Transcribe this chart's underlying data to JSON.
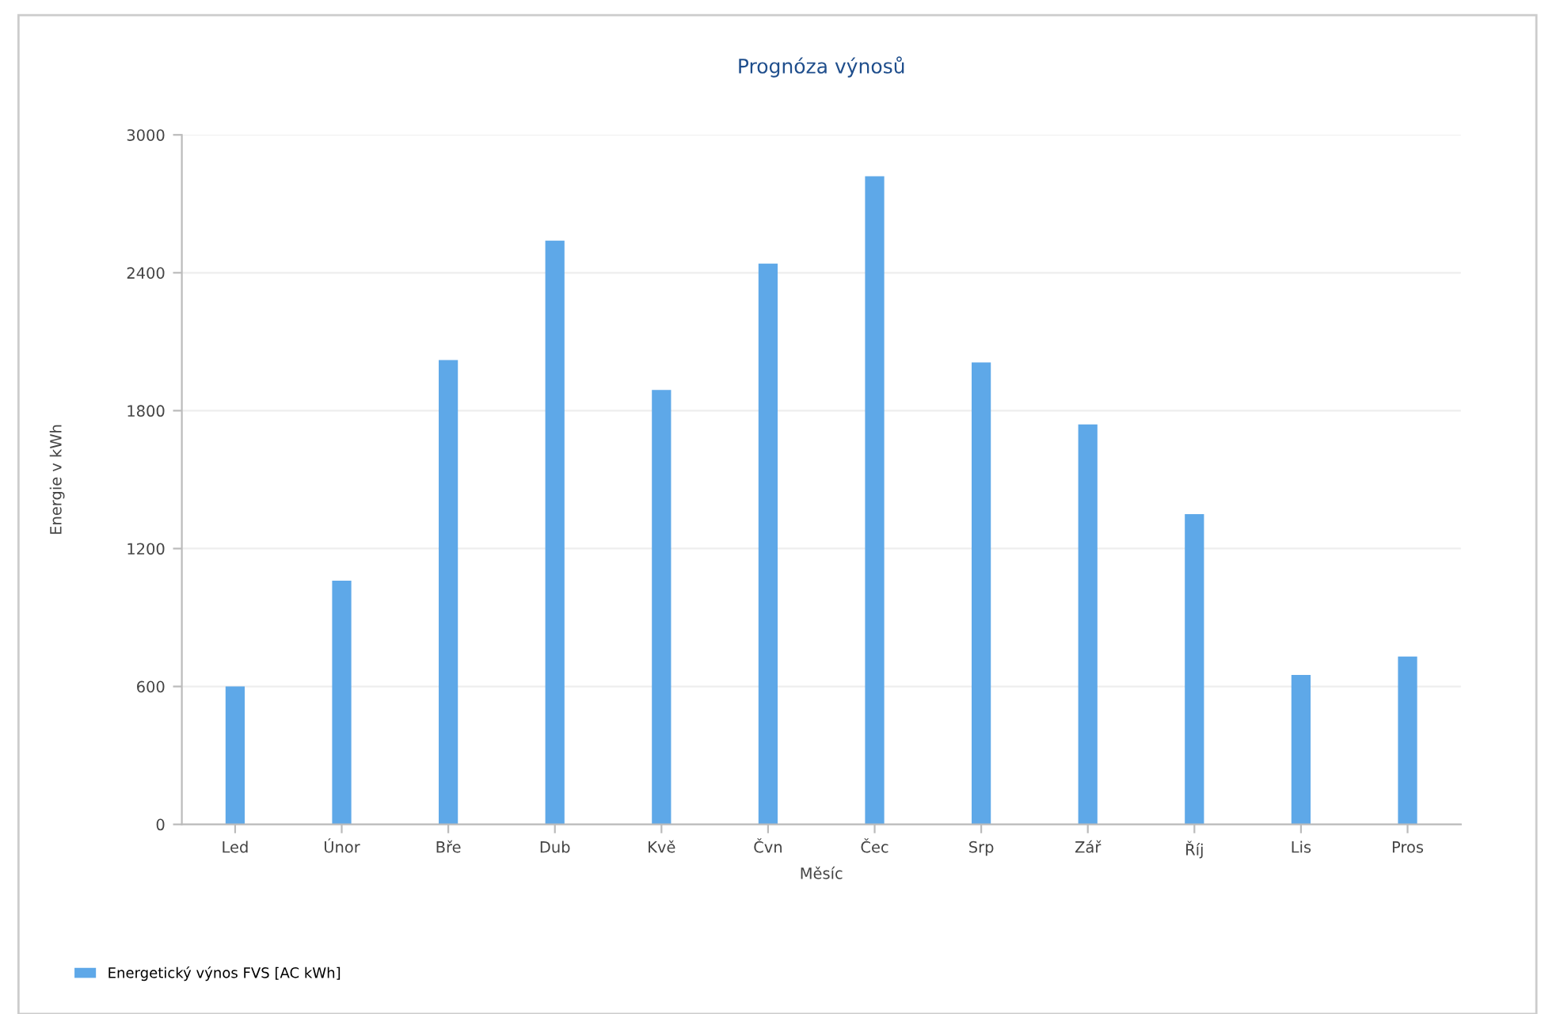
{
  "chart_data": {
    "type": "bar",
    "title": "Prognóza výnosů",
    "xlabel": "Měsíc",
    "ylabel": "Energie v kWh",
    "categories": [
      "Led",
      "Únor",
      "Bře",
      "Dub",
      "Kvě",
      "Čvn",
      "Čec",
      "Srp",
      "Zář",
      "Říj",
      "Lis",
      "Pros"
    ],
    "series": [
      {
        "name": "Energetický výnos FVS [AC kWh]",
        "color": "#5ea8e8",
        "values": [
          600,
          1060,
          2020,
          2540,
          1890,
          2440,
          2820,
          2010,
          1740,
          1350,
          650,
          730
        ]
      }
    ],
    "ylim": [
      0,
      3000
    ],
    "yticks": [
      0,
      600,
      1200,
      1800,
      2400,
      3000
    ],
    "grid": "y",
    "legend": "bottom left"
  }
}
